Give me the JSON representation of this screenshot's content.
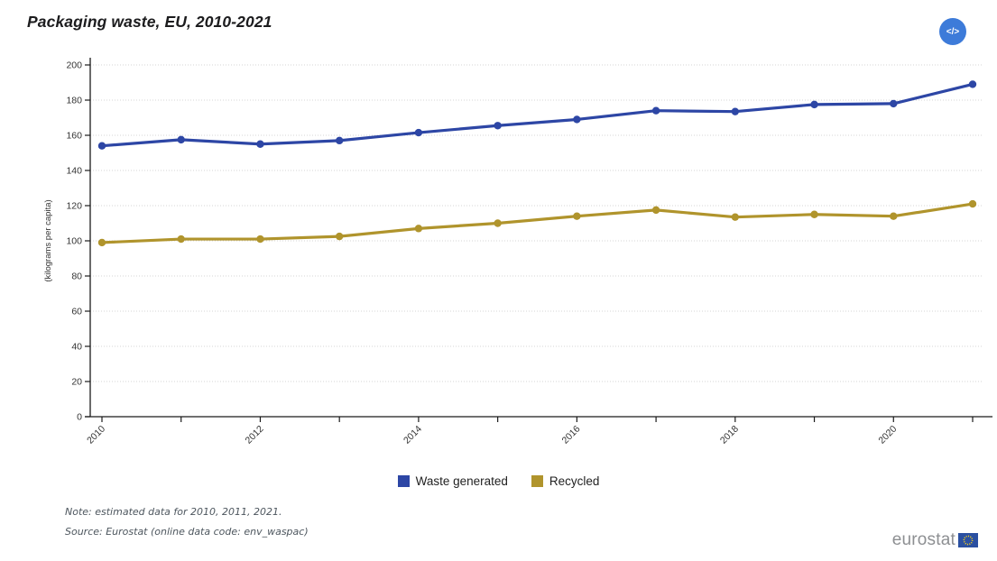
{
  "header": {
    "title": "Packaging waste, EU, 2010-2021",
    "embed_button_label": "</>"
  },
  "chart_data": {
    "type": "line",
    "x": [
      2010,
      2011,
      2012,
      2013,
      2014,
      2015,
      2016,
      2017,
      2018,
      2019,
      2020,
      2021
    ],
    "xtick_label_every": 2,
    "series": [
      {
        "name": "Waste generated",
        "color": "#2d46a5",
        "values": [
          154,
          157.5,
          155,
          157,
          161.5,
          165.5,
          169,
          174,
          173.5,
          177.5,
          178,
          189
        ]
      },
      {
        "name": "Recycled",
        "color": "#b0942c",
        "values": [
          99,
          101,
          101,
          102.5,
          107,
          110,
          114,
          117.5,
          113.5,
          115,
          114,
          121
        ]
      }
    ],
    "title": "Packaging waste, EU, 2010-2021",
    "xlabel": "",
    "ylabel": "(kilograms per capita)",
    "ylim": [
      0,
      200
    ],
    "ytick_step": 20,
    "grid": true,
    "legend_position": "bottom"
  },
  "footer": {
    "note": "Note: estimated data for 2010, 2011, 2021.",
    "source": "Source: Eurostat (online data code: env_waspac)",
    "logo_text": "eurostat"
  },
  "colors": {
    "accent_button": "#3d7bd9",
    "axis": "#1a1a1a",
    "grid": "#d4d4d4",
    "tick_label": "#333333",
    "note_text": "#4d565e",
    "logo_text": "#8d8f92",
    "eu_flag_blue": "#2b50a1",
    "eu_flag_stars": "#ffd617"
  }
}
